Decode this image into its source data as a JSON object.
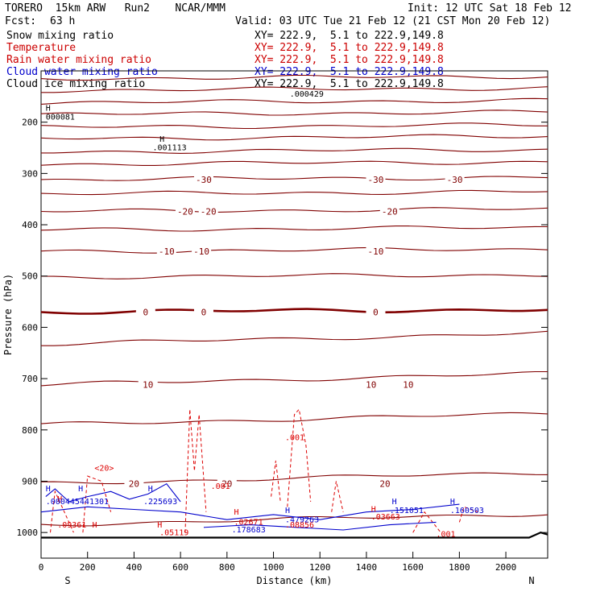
{
  "header": {
    "model_line": "TORERO  15km ARW   Run2    NCAR/MMM",
    "fcst_label": "Fcst:",
    "fcst_value": "63 h",
    "init": "Init: 12 UTC Sat 18 Feb 12",
    "valid": "Valid: 03 UTC Tue 21 Feb 12 (21 CST Mon 20 Feb 12)"
  },
  "legend": [
    {
      "name": "Snow mixing ratio",
      "xy": "XY= 222.9,  5.1 to 222.9,149.8",
      "color": "#000000"
    },
    {
      "name": "Temperature",
      "xy": "XY= 222.9,  5.1 to 222.9,149.8",
      "color": "#cc0000"
    },
    {
      "name": "Rain water mixing ratio",
      "xy": "XY= 222.9,  5.1 to 222.9,149.8",
      "color": "#cc0000"
    },
    {
      "name": "Cloud water mixing ratio",
      "xy": "XY= 222.9,  5.1 to 222.9,149.8",
      "color": "#0000cc"
    },
    {
      "name": "Cloud ice mixing ratio",
      "xy": "XY= 222.9,  5.1 to 222.9,149.8",
      "color": "#000000"
    }
  ],
  "chart_data": {
    "type": "cross-section-contour",
    "xlabel": "Distance (km)",
    "ylabel": "Pressure (hPa)",
    "xlim": [
      0,
      2180
    ],
    "ylim": [
      1050,
      100
    ],
    "x_ticks": [
      0,
      200,
      400,
      600,
      800,
      1000,
      1200,
      1400,
      1600,
      1800,
      2000
    ],
    "y_ticks": [
      200,
      300,
      400,
      500,
      600,
      700,
      800,
      900,
      1000
    ],
    "endpoint_labels": {
      "left": "S",
      "right": "N"
    },
    "temperature_color": "#800000",
    "freezing_line_color": "#800000",
    "rain_color": "#dd0000",
    "cloud_water_color": "#0000cc",
    "ground_color": "#000000",
    "temperature_levels": [
      {
        "p": 115,
        "label": ""
      },
      {
        "p": 138,
        "label": ""
      },
      {
        "p": 162,
        "label": ""
      },
      {
        "p": 185,
        "label": ""
      },
      {
        "p": 210,
        "label": ""
      },
      {
        "p": 232,
        "label": ""
      },
      {
        "p": 258,
        "label": ""
      },
      {
        "p": 282,
        "label": ""
      },
      {
        "p": 312,
        "label": "-30",
        "label_x": [
          700,
          1440,
          1780
        ]
      },
      {
        "p": 340,
        "label": ""
      },
      {
        "p": 374,
        "label": "-20",
        "label_x": [
          620,
          720,
          1500
        ]
      },
      {
        "p": 410,
        "label": ""
      },
      {
        "p": 452,
        "label": "-10",
        "label_x": [
          540,
          690,
          1440
        ]
      },
      {
        "p": 502,
        "label": ""
      },
      {
        "p": 570,
        "label": "0",
        "label_x": [
          450,
          700,
          1440
        ]
      },
      {
        "p": 633,
        "label": ""
      },
      {
        "p": 712,
        "label": "10",
        "label_x": [
          460,
          1420,
          1580
        ]
      },
      {
        "p": 790,
        "label": ""
      },
      {
        "p": 905,
        "label": "20",
        "label_x": [
          400,
          800,
          1480
        ]
      },
      {
        "p": 985,
        "label": ""
      }
    ],
    "snow_labels": [
      {
        "x": 20,
        "p": 178,
        "text": "H"
      },
      {
        "x": 20,
        "p": 195,
        "text": "000081"
      },
      {
        "x": 510,
        "p": 238,
        "text": "H"
      },
      {
        "x": 480,
        "p": 255,
        "text": ".001113"
      },
      {
        "x": 1070,
        "p": 150,
        "text": ".000429"
      }
    ],
    "rain_labels": [
      {
        "x": 70,
        "p": 940,
        "text": "H"
      },
      {
        "x": 70,
        "p": 990,
        "text": ".09361"
      },
      {
        "x": 220,
        "p": 990,
        "text": "H"
      },
      {
        "x": 230,
        "p": 880,
        "text": "<20>"
      },
      {
        "x": 500,
        "p": 990,
        "text": "H"
      },
      {
        "x": 510,
        "p": 1005,
        "text": ".05119"
      },
      {
        "x": 730,
        "p": 915,
        "text": ".001"
      },
      {
        "x": 1050,
        "p": 820,
        "text": ".001"
      },
      {
        "x": 830,
        "p": 965,
        "text": "H"
      },
      {
        "x": 830,
        "p": 985,
        "text": ".02671"
      },
      {
        "x": 1050,
        "p": 990,
        "text": ".08856"
      },
      {
        "x": 1420,
        "p": 960,
        "text": "H"
      },
      {
        "x": 1420,
        "p": 975,
        "text": ".03663"
      },
      {
        "x": 1700,
        "p": 1008,
        "text": ".001"
      }
    ],
    "cloud_labels": [
      {
        "x": 20,
        "p": 920,
        "text": "H"
      },
      {
        "x": 160,
        "p": 920,
        "text": "H"
      },
      {
        "x": 20,
        "p": 945,
        "text": ".000445441301"
      },
      {
        "x": 460,
        "p": 920,
        "text": "H"
      },
      {
        "x": 440,
        "p": 945,
        "text": ".225693"
      },
      {
        "x": 1050,
        "p": 962,
        "text": "H"
      },
      {
        "x": 1050,
        "p": 980,
        "text": ".479263"
      },
      {
        "x": 820,
        "p": 1000,
        "text": ".178683"
      },
      {
        "x": 1510,
        "p": 945,
        "text": "H"
      },
      {
        "x": 1500,
        "p": 962,
        "text": ".151051"
      },
      {
        "x": 1760,
        "p": 945,
        "text": "H"
      },
      {
        "x": 1760,
        "p": 962,
        "text": ".160503"
      }
    ]
  }
}
